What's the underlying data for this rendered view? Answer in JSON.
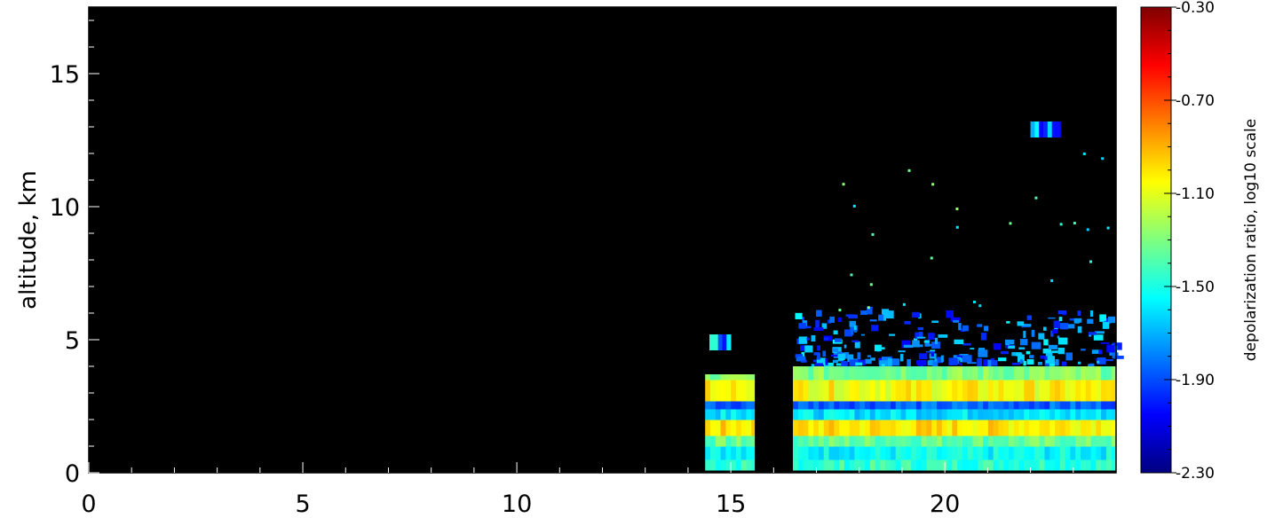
{
  "chart_data": {
    "type": "heatmap",
    "title": "",
    "xlabel": "",
    "ylabel": "altitude, km",
    "xlim": [
      0,
      24
    ],
    "ylim": [
      0,
      17.5
    ],
    "x_ticks": [
      "0",
      "5",
      "10",
      "15",
      "20"
    ],
    "x_tick_values": [
      0,
      5,
      10,
      15,
      20
    ],
    "y_ticks": [
      "0",
      "5",
      "10",
      "15"
    ],
    "y_tick_values": [
      0,
      5,
      10,
      15
    ],
    "colorbar": {
      "label": "depolarization ratio, log10 scale",
      "range": [
        -2.3,
        -0.3
      ],
      "ticks": [
        "-0.30",
        "-0.70",
        "-1.10",
        "-1.50",
        "-1.90",
        "-2.30"
      ],
      "tick_values": [
        -0.3,
        -0.7,
        -1.1,
        -1.5,
        -1.9,
        -2.3
      ],
      "colormap": [
        "#00007f",
        "#0000ff",
        "#007fff",
        "#00ffff",
        "#7fff7f",
        "#ffff00",
        "#ff7f00",
        "#ff0000",
        "#7f0000"
      ]
    },
    "background_color": "#000000",
    "data_regions": [
      {
        "x": [
          14.4,
          15.55
        ],
        "y": [
          0.1,
          3.7
        ],
        "pattern": "aerosol-layer"
      },
      {
        "x": [
          16.45,
          24.0
        ],
        "y": [
          0.1,
          4.0
        ],
        "pattern": "aerosol-layer"
      },
      {
        "x": [
          14.5,
          15.0
        ],
        "y": [
          4.6,
          5.2
        ],
        "value": -1.75
      },
      {
        "x": [
          22.0,
          22.7
        ],
        "y": [
          12.6,
          13.2
        ],
        "value": -1.8
      },
      {
        "x": [
          16.5,
          24.0
        ],
        "y": [
          4.0,
          6.0
        ],
        "value": -1.8
      }
    ],
    "layer_profile": [
      {
        "y": [
          0.1,
          0.5
        ],
        "value": -1.45
      },
      {
        "y": [
          0.5,
          1.0
        ],
        "value": -1.55
      },
      {
        "y": [
          1.0,
          1.4
        ],
        "value": -1.35
      },
      {
        "y": [
          1.4,
          2.0
        ],
        "value": -1.0
      },
      {
        "y": [
          2.0,
          2.4
        ],
        "value": -1.6
      },
      {
        "y": [
          2.4,
          2.7
        ],
        "value": -1.85
      },
      {
        "y": [
          2.7,
          3.5
        ],
        "value": -1.05
      },
      {
        "y": [
          3.5,
          4.0
        ],
        "value": -1.3
      }
    ]
  }
}
